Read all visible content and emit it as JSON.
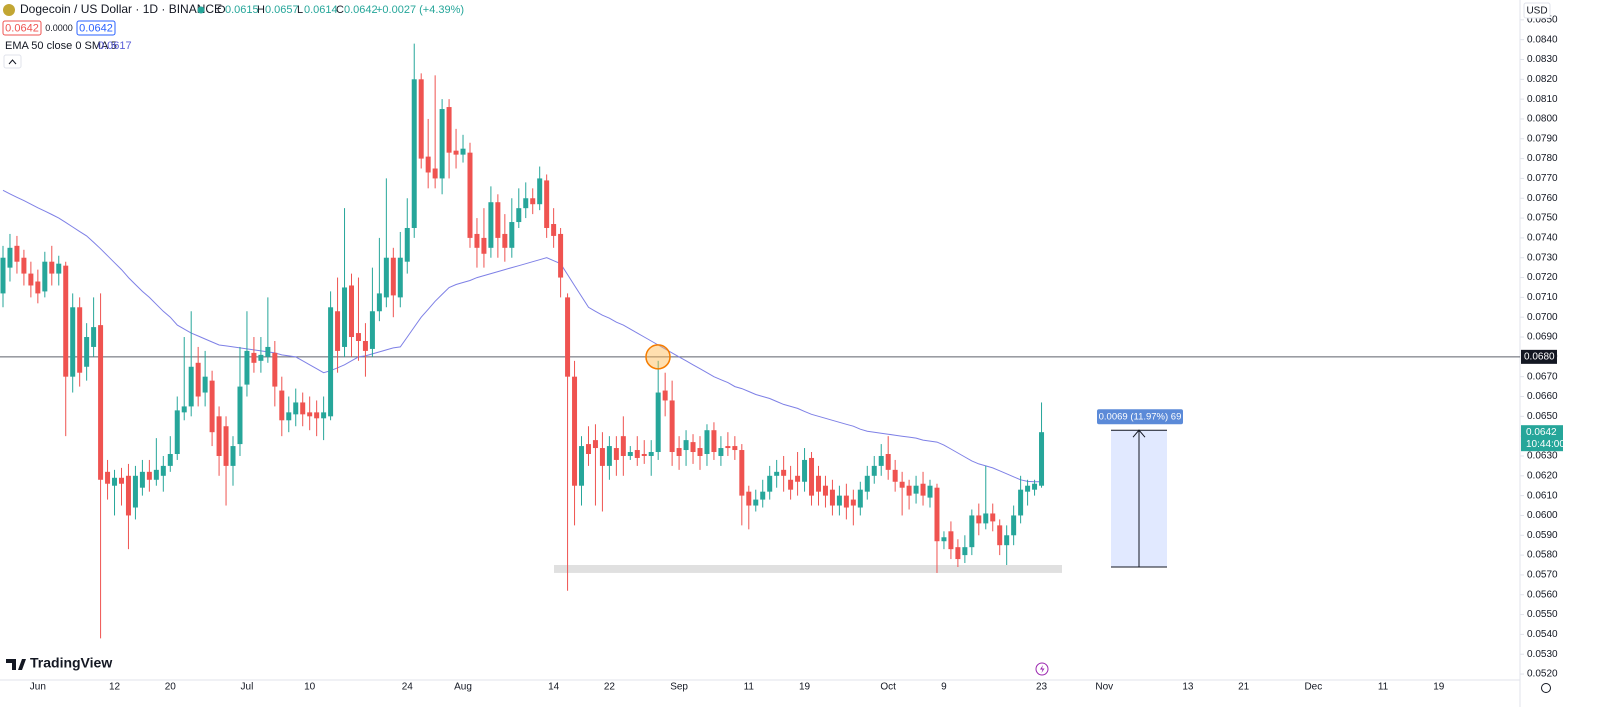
{
  "header": {
    "symbol": "Dogecoin / US Dollar · 1D · BINANCE",
    "ohlc_labels": [
      "O",
      "H",
      "L",
      "C"
    ],
    "change": "+0.0027 (+4.39%)",
    "bid": "0.0642",
    "spread": "0.0000",
    "ask": "0.0642",
    "currency": "USD",
    "brand": "TradingView"
  },
  "chart_data": {
    "type": "candlestick",
    "up_color": "#26a69a",
    "down_color": "#ef5350",
    "ylim": [
      0.0517,
      0.086
    ],
    "yticks": [
      {
        "value": 0.052,
        "label": "0.0520"
      },
      {
        "value": 0.053,
        "label": "0.0530"
      },
      {
        "value": 0.054,
        "label": "0.0540"
      },
      {
        "value": 0.055,
        "label": "0.0550"
      },
      {
        "value": 0.056,
        "label": "0.0560"
      },
      {
        "value": 0.057,
        "label": "0.0570"
      },
      {
        "value": 0.058,
        "label": "0.0580"
      },
      {
        "value": 0.059,
        "label": "0.0590"
      },
      {
        "value": 0.06,
        "label": "0.0600"
      },
      {
        "value": 0.061,
        "label": "0.0610"
      },
      {
        "value": 0.062,
        "label": "0.0620"
      },
      {
        "value": 0.063,
        "label": "0.0630"
      },
      {
        "value": 0.064,
        "label": "0.0640"
      },
      {
        "value": 0.065,
        "label": "0.0650"
      },
      {
        "value": 0.066,
        "label": "0.0660"
      },
      {
        "value": 0.067,
        "label": "0.0670"
      },
      {
        "value": 0.068,
        "label": "0.0680"
      },
      {
        "value": 0.069,
        "label": "0.0690"
      },
      {
        "value": 0.07,
        "label": "0.0700"
      },
      {
        "value": 0.071,
        "label": "0.0710"
      },
      {
        "value": 0.072,
        "label": "0.0720"
      },
      {
        "value": 0.073,
        "label": "0.0730"
      },
      {
        "value": 0.074,
        "label": "0.0740"
      },
      {
        "value": 0.075,
        "label": "0.0750"
      },
      {
        "value": 0.076,
        "label": "0.0760"
      },
      {
        "value": 0.077,
        "label": "0.0770"
      },
      {
        "value": 0.078,
        "label": "0.0780"
      },
      {
        "value": 0.079,
        "label": "0.0790"
      },
      {
        "value": 0.08,
        "label": "0.0800"
      },
      {
        "value": 0.081,
        "label": "0.0810"
      },
      {
        "value": 0.082,
        "label": "0.0820"
      },
      {
        "value": 0.083,
        "label": "0.0830"
      },
      {
        "value": 0.084,
        "label": "0.0840"
      },
      {
        "value": 0.085,
        "label": "0.0850"
      }
    ],
    "categories": [
      null,
      null,
      null,
      null,
      null,
      "Jun",
      null,
      null,
      null,
      null,
      null,
      null,
      null,
      null,
      null,
      null,
      "12",
      null,
      null,
      null,
      null,
      null,
      null,
      null,
      "20",
      null,
      null,
      null,
      null,
      null,
      null,
      null,
      null,
      null,
      null,
      "Jul",
      null,
      null,
      null,
      null,
      null,
      null,
      null,
      null,
      "10",
      null,
      null,
      null,
      null,
      null,
      null,
      null,
      null,
      null,
      null,
      null,
      null,
      null,
      "24",
      null,
      null,
      null,
      null,
      null,
      null,
      null,
      "Aug",
      null,
      null,
      null,
      null,
      null,
      null,
      null,
      null,
      null,
      null,
      null,
      null,
      "14",
      null,
      null,
      null,
      null,
      null,
      null,
      null,
      "22",
      null,
      null,
      null,
      null,
      null,
      null,
      null,
      null,
      null,
      "Sep",
      null,
      null,
      null,
      null,
      null,
      null,
      null,
      null,
      null,
      "11",
      null,
      null,
      null,
      null,
      null,
      null,
      null,
      "19",
      null,
      null,
      null,
      null,
      null,
      null,
      null,
      null,
      null,
      null,
      null,
      "Oct",
      null,
      null,
      null,
      null,
      null,
      null,
      null,
      "9",
      null,
      null,
      null,
      null,
      null,
      null,
      null,
      null,
      null,
      null,
      null,
      null,
      null,
      "23",
      null,
      null,
      null,
      null,
      null,
      null,
      null,
      null,
      "Nov",
      null,
      null,
      null,
      null,
      null,
      null,
      null,
      null,
      null,
      null,
      null,
      "13",
      null,
      null,
      null,
      null,
      null,
      null,
      null,
      "21",
      null,
      null,
      null,
      null,
      null,
      null,
      null,
      null,
      null,
      "Dec",
      null,
      null,
      null,
      null,
      null,
      null,
      null,
      null,
      null,
      "11",
      null,
      null,
      null,
      null,
      null,
      null,
      null,
      "19"
    ],
    "open": [
      0.0712,
      0.0725,
      0.0736,
      0.073,
      0.0722,
      0.0718,
      0.0713,
      0.0728,
      0.0722,
      0.0726,
      0.067,
      0.0705,
      0.0675,
      0.0685,
      0.0696,
      0.0622,
      0.0615,
      0.0619,
      0.062,
      0.0604,
      0.0614,
      0.0622,
      0.0618,
      0.062,
      0.0625,
      0.0631,
      0.0652,
      0.0655,
      0.0677,
      0.0662,
      0.0668,
      0.065,
      0.0645,
      0.0625,
      0.0636,
      0.0666,
      0.0682,
      0.0678,
      0.068,
      0.0682,
      0.0663,
      0.0648,
      0.0651,
      0.0657,
      0.0652,
      0.0652,
      0.0649,
      0.065,
      0.0703,
      0.0685,
      0.0716,
      0.0692,
      0.0688,
      0.0684,
      0.0703,
      0.071,
      0.073,
      0.071,
      0.0728,
      0.0745,
      0.082,
      0.0781,
      0.0775,
      0.077,
      0.0806,
      0.0784,
      0.0782,
      0.0783,
      0.0742,
      0.074,
      0.0735,
      0.0758,
      0.0742,
      0.0735,
      0.0748,
      0.0755,
      0.076,
      0.0757,
      0.0769,
      0.0747,
      0.0742,
      0.071,
      0.067,
      0.0615,
      0.0636,
      0.0638,
      0.0634,
      0.0625,
      0.0634,
      0.064,
      0.063,
      0.0633,
      0.0631,
      0.063,
      0.0632,
      0.0663,
      0.0658,
      0.0634,
      0.0633,
      0.0637,
      0.0634,
      0.0631,
      0.0643,
      0.063,
      0.0635,
      0.0635,
      0.0633,
      0.0612,
      0.0605,
      0.0608,
      0.0612,
      0.062,
      0.0623,
      0.0618,
      0.062,
      0.0617,
      0.0629,
      0.062,
      0.0615,
      0.0613,
      0.0605,
      0.061,
      0.0608,
      0.0604,
      0.0612,
      0.062,
      0.0625,
      0.0631,
      0.0623,
      0.0617,
      0.0615,
      0.0611,
      0.0616,
      0.0609,
      0.0614,
      0.0587,
      0.0592,
      0.0584,
      0.058,
      0.0584,
      0.06,
      0.0596,
      0.0601,
      0.0595,
      0.0585,
      0.059,
      0.06,
      0.0612,
      0.0613,
      0.0615,
      null,
      null,
      null,
      null,
      null,
      null,
      null,
      null,
      null,
      null,
      null,
      null,
      null,
      null,
      null,
      null,
      null,
      null,
      null,
      null,
      null,
      null,
      null,
      null,
      null,
      null,
      null,
      null,
      null,
      null,
      null,
      null,
      null,
      null,
      null,
      null,
      null,
      null,
      null,
      null,
      null,
      null,
      null,
      null,
      null,
      null,
      null,
      null,
      null,
      null,
      null,
      null,
      null,
      null,
      null,
      null,
      null
    ],
    "high": [
      0.0736,
      0.0742,
      0.0741,
      0.0734,
      0.0728,
      0.0724,
      0.0733,
      0.0736,
      0.0731,
      0.0728,
      0.0712,
      0.071,
      0.0697,
      0.071,
      0.0712,
      0.0628,
      0.0623,
      0.0624,
      0.0626,
      0.0625,
      0.0628,
      0.0628,
      0.0639,
      0.063,
      0.064,
      0.066,
      0.069,
      0.0703,
      0.0685,
      0.0683,
      0.0673,
      0.0655,
      0.065,
      0.064,
      0.0685,
      0.0703,
      0.069,
      0.069,
      0.071,
      0.0688,
      0.067,
      0.066,
      0.0664,
      0.0662,
      0.066,
      0.0658,
      0.066,
      0.0713,
      0.072,
      0.0755,
      0.0722,
      0.072,
      0.0697,
      0.0725,
      0.074,
      0.077,
      0.0735,
      0.0743,
      0.076,
      0.0838,
      0.0823,
      0.08,
      0.0822,
      0.081,
      0.081,
      0.0795,
      0.0792,
      0.0788,
      0.075,
      0.0755,
      0.0766,
      0.0762,
      0.0752,
      0.076,
      0.0765,
      0.0768,
      0.0765,
      0.0776,
      0.0772,
      0.0755,
      0.0745,
      0.0712,
      0.0678,
      0.064,
      0.0645,
      0.0646,
      0.0642,
      0.064,
      0.064,
      0.065,
      0.0635,
      0.064,
      0.0638,
      0.0638,
      0.0678,
      0.0672,
      0.0668,
      0.064,
      0.0643,
      0.0641,
      0.064,
      0.0646,
      0.0647,
      0.064,
      0.0642,
      0.064,
      0.0636,
      0.0615,
      0.0613,
      0.0618,
      0.0625,
      0.0628,
      0.063,
      0.0625,
      0.0632,
      0.0634,
      0.0632,
      0.0625,
      0.062,
      0.0618,
      0.0615,
      0.0616,
      0.0613,
      0.0617,
      0.0625,
      0.063,
      0.0636,
      0.064,
      0.0628,
      0.0622,
      0.0618,
      0.062,
      0.0622,
      0.0618,
      0.0616,
      0.0592,
      0.0597,
      0.0588,
      0.059,
      0.0603,
      0.0606,
      0.0625,
      0.0606,
      0.0598,
      0.0595,
      0.0605,
      0.062,
      0.0618,
      0.0618,
      0.0657,
      null,
      null,
      null,
      null,
      null,
      null,
      null,
      null,
      null,
      null,
      null,
      null,
      null,
      null,
      null,
      null,
      null,
      null,
      null,
      null,
      null,
      null,
      null,
      null,
      null,
      null,
      null,
      null,
      null,
      null,
      null,
      null,
      null,
      null,
      null,
      null,
      null,
      null,
      null,
      null,
      null,
      null,
      null,
      null,
      null,
      null,
      null,
      null,
      null,
      null,
      null,
      null,
      null,
      null,
      null,
      null,
      null
    ],
    "low": [
      0.0705,
      0.0718,
      0.0722,
      0.0716,
      0.071,
      0.0707,
      0.071,
      0.0716,
      0.0716,
      0.064,
      0.0662,
      0.0665,
      0.0668,
      0.068,
      0.0538,
      0.0608,
      0.06,
      0.0605,
      0.0583,
      0.0598,
      0.061,
      0.0612,
      0.0615,
      0.0612,
      0.0622,
      0.0628,
      0.0648,
      0.065,
      0.0655,
      0.0655,
      0.0635,
      0.062,
      0.0605,
      0.0615,
      0.063,
      0.066,
      0.0672,
      0.0672,
      0.0677,
      0.0655,
      0.064,
      0.0642,
      0.0645,
      0.0645,
      0.0643,
      0.064,
      0.0638,
      0.0648,
      0.0672,
      0.068,
      0.068,
      0.0678,
      0.067,
      0.068,
      0.0698,
      0.0705,
      0.07,
      0.0705,
      0.0722,
      0.074,
      0.0775,
      0.0765,
      0.0765,
      0.0762,
      0.077,
      0.0775,
      0.0778,
      0.0735,
      0.0725,
      0.0725,
      0.073,
      0.073,
      0.0728,
      0.073,
      0.0745,
      0.075,
      0.0752,
      0.0754,
      0.074,
      0.0735,
      0.071,
      0.0562,
      0.0595,
      0.0605,
      0.0625,
      0.0605,
      0.0602,
      0.0618,
      0.062,
      0.062,
      0.0628,
      0.0625,
      0.0626,
      0.062,
      0.0628,
      0.065,
      0.0625,
      0.0623,
      0.0625,
      0.0626,
      0.0623,
      0.0625,
      0.0628,
      0.0625,
      0.063,
      0.0628,
      0.0595,
      0.0593,
      0.0602,
      0.0604,
      0.0608,
      0.0614,
      0.0612,
      0.0608,
      0.061,
      0.0612,
      0.0605,
      0.0605,
      0.0604,
      0.06,
      0.06,
      0.0598,
      0.0595,
      0.06,
      0.0608,
      0.0616,
      0.062,
      0.0618,
      0.0612,
      0.06,
      0.0603,
      0.0606,
      0.0605,
      0.0604,
      0.0571,
      0.0583,
      0.0578,
      0.0574,
      0.0576,
      0.058,
      0.059,
      0.0593,
      0.0592,
      0.058,
      0.0575,
      0.0585,
      0.0596,
      0.0605,
      0.061,
      0.0614,
      null,
      null,
      null,
      null,
      null,
      null,
      null,
      null,
      null,
      null,
      null,
      null,
      null,
      null,
      null,
      null,
      null,
      null,
      null,
      null,
      null,
      null,
      null,
      null,
      null,
      null,
      null,
      null,
      null,
      null,
      null,
      null,
      null,
      null,
      null,
      null,
      null,
      null,
      null,
      null,
      null,
      null,
      null,
      null,
      null,
      null,
      null,
      null,
      null,
      null,
      null,
      null,
      null,
      null,
      null,
      null,
      null
    ],
    "close": [
      0.073,
      0.0735,
      0.0728,
      0.0722,
      0.0716,
      0.0712,
      0.0728,
      0.0722,
      0.0727,
      0.067,
      0.0705,
      0.0672,
      0.069,
      0.0695,
      0.0618,
      0.0616,
      0.0619,
      0.0616,
      0.06,
      0.062,
      0.0622,
      0.0618,
      0.0623,
      0.0625,
      0.0631,
      0.0653,
      0.0655,
      0.0675,
      0.066,
      0.067,
      0.0642,
      0.063,
      0.0625,
      0.0635,
      0.0665,
      0.0683,
      0.0677,
      0.0681,
      0.0685,
      0.0665,
      0.0648,
      0.0652,
      0.0657,
      0.0651,
      0.065,
      0.0649,
      0.0652,
      0.0705,
      0.0683,
      0.0715,
      0.069,
      0.0688,
      0.0683,
      0.0703,
      0.0712,
      0.073,
      0.0711,
      0.073,
      0.0745,
      0.082,
      0.078,
      0.0773,
      0.077,
      0.0805,
      0.0783,
      0.0782,
      0.0785,
      0.074,
      0.0735,
      0.0732,
      0.0758,
      0.074,
      0.0735,
      0.0748,
      0.0755,
      0.076,
      0.0757,
      0.077,
      0.0745,
      0.0741,
      0.072,
      0.067,
      0.0615,
      0.0635,
      0.0631,
      0.0634,
      0.0625,
      0.0635,
      0.0628,
      0.063,
      0.0632,
      0.0629,
      0.063,
      0.0632,
      0.0662,
      0.0658,
      0.0632,
      0.063,
      0.0638,
      0.0632,
      0.063,
      0.0643,
      0.0632,
      0.0634,
      0.0634,
      0.0633,
      0.061,
      0.0605,
      0.0608,
      0.0612,
      0.062,
      0.0622,
      0.062,
      0.0613,
      0.0617,
      0.0628,
      0.061,
      0.0612,
      0.061,
      0.0605,
      0.061,
      0.0604,
      0.0605,
      0.0613,
      0.062,
      0.0625,
      0.063,
      0.0623,
      0.0617,
      0.0614,
      0.061,
      0.0615,
      0.061,
      0.0615,
      0.0587,
      0.0589,
      0.0583,
      0.0578,
      0.0584,
      0.06,
      0.0596,
      0.0601,
      0.0597,
      0.0585,
      0.059,
      0.06,
      0.0613,
      0.0615,
      0.0616,
      0.0642,
      null,
      null,
      null,
      null,
      null,
      null,
      null,
      null,
      null,
      null,
      null,
      null,
      null,
      null,
      null,
      null,
      null,
      null,
      null,
      null,
      null,
      null,
      null,
      null,
      null,
      null,
      null,
      null,
      null,
      null,
      null,
      null,
      null,
      null,
      null,
      null,
      null,
      null,
      null,
      null,
      null,
      null,
      null,
      null,
      null,
      null,
      null,
      null,
      null,
      null,
      null,
      null,
      null,
      null,
      null,
      null,
      null
    ],
    "ema": {
      "name": "EMA 50 close 0 SMA 5",
      "color": "#7e80e6",
      "values": [
        0.0764,
        0.07622,
        0.07605,
        0.07588,
        0.0757,
        0.07552,
        0.07535,
        0.07518,
        0.075,
        0.07478,
        0.07455,
        0.07432,
        0.0741,
        0.07378,
        0.07345,
        0.0731,
        0.07275,
        0.0724,
        0.072,
        0.07165,
        0.0713,
        0.071,
        0.07065,
        0.0703,
        0.07,
        0.0696,
        0.0694,
        0.0692,
        0.06905,
        0.0689,
        0.06875,
        0.0686,
        0.06855,
        0.0685,
        0.06845,
        0.0684,
        0.06835,
        0.0683,
        0.06825,
        0.0682,
        0.0681,
        0.06805,
        0.068,
        0.0678,
        0.0676,
        0.0674,
        0.0672,
        0.0673,
        0.06745,
        0.0676,
        0.0678,
        0.068,
        0.06805,
        0.06815,
        0.06825,
        0.06835,
        0.06845,
        0.0685,
        0.069,
        0.0695,
        0.07,
        0.0704,
        0.0708,
        0.07115,
        0.0715,
        0.07165,
        0.07175,
        0.07185,
        0.072,
        0.0721,
        0.0722,
        0.0723,
        0.0724,
        0.0725,
        0.0726,
        0.0727,
        0.0728,
        0.0729,
        0.073,
        0.07285,
        0.0727,
        0.07215,
        0.0716,
        0.07105,
        0.0705,
        0.0703,
        0.0701,
        0.06995,
        0.06975,
        0.0696,
        0.0694,
        0.0692,
        0.069,
        0.0688,
        0.0686,
        0.0684,
        0.0682,
        0.068,
        0.0678,
        0.0676,
        0.0674,
        0.0672,
        0.067,
        0.06685,
        0.0667,
        0.0665,
        0.0664,
        0.06625,
        0.0661,
        0.066,
        0.0659,
        0.06575,
        0.0656,
        0.0655,
        0.0654,
        0.06525,
        0.0651,
        0.065,
        0.0649,
        0.0648,
        0.0647,
        0.0646,
        0.0645,
        0.06435,
        0.06425,
        0.0642,
        0.06415,
        0.0641,
        0.06405,
        0.064,
        0.06395,
        0.0639,
        0.0638,
        0.06375,
        0.0637,
        0.06355,
        0.06335,
        0.06315,
        0.06295,
        0.06275,
        0.0626,
        0.0625,
        0.0624,
        0.06225,
        0.0621,
        0.06195,
        0.0618,
        0.06172,
        0.0617,
        0.0617,
        null,
        null,
        null,
        null,
        null,
        null,
        null,
        null,
        null,
        null,
        null,
        null,
        null,
        null,
        null,
        null,
        null,
        null,
        null,
        null,
        null,
        null,
        null,
        null,
        null,
        null,
        null,
        null,
        null,
        null,
        null,
        null,
        null,
        null,
        null,
        null,
        null,
        null,
        null,
        null,
        null,
        null,
        null,
        null,
        null,
        null,
        null,
        null,
        null,
        null,
        null,
        null,
        null,
        null,
        null,
        null,
        null
      ]
    },
    "hline": {
      "value": 0.068,
      "label": "0.0680"
    },
    "countdown": "10:44:00",
    "support_zone": {
      "low": 0.0571,
      "high": 0.0575
    },
    "measure": {
      "from": 0.0574,
      "to": 0.0643,
      "label": "0.0069 (11.97%) 69"
    }
  }
}
